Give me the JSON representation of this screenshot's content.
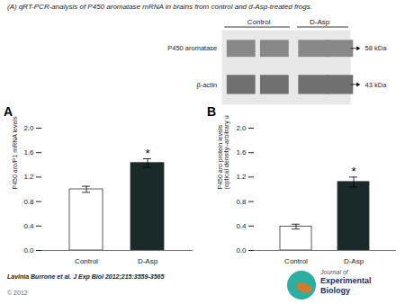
{
  "title": "(A) qRT-PCR-analysis of P450 aromatase mRNA in brains from control and d-Asp-treated frogs.",
  "annotations": {
    "blot_columns": [
      "Control",
      "D-Asp"
    ],
    "blot_rows": [
      {
        "label": "P450 aromatase",
        "size": "58 kDa"
      },
      {
        "label": "β-actin",
        "size": "43 kDa"
      }
    ],
    "footer": "Lavinia Burrone et al. J Exp Biol 2012;215:3559-3565",
    "copyright": "© 2012",
    "logo": [
      "Journal of",
      "Experimental",
      "Biology"
    ]
  },
  "chart_data": [
    {
      "type": "bar",
      "subtitle": "A",
      "categories": [
        "Control",
        "D-Asp"
      ],
      "values": [
        1.0,
        1.43
      ],
      "errors": [
        0.05,
        0.07
      ],
      "colors": [
        "white",
        "#1a2a2a"
      ],
      "ylabel": "P450 aro/P1 mRNA levels",
      "ylim": [
        0,
        2
      ],
      "yticks": [
        {
          "value": 0,
          "label": "0.0"
        },
        0.4,
        0.8,
        1.2,
        1.6,
        {
          "value": 2,
          "label": "2.0"
        }
      ],
      "annotations": [
        {
          "category": "D-Asp",
          "text": "*"
        }
      ]
    },
    {
      "type": "bar",
      "subtitle": "B",
      "categories": [
        "Control",
        "D-Asp"
      ],
      "values": [
        0.39,
        1.12
      ],
      "errors": [
        0.04,
        0.08
      ],
      "colors": [
        "white",
        "#1a2a2a"
      ],
      "ylabel": "P450 aro protein levels\n(optical density–arbitrary unit)",
      "ylim": [
        0,
        2
      ],
      "yticks": [
        {
          "value": 0,
          "label": "0.0"
        },
        0.4,
        0.8,
        1.2,
        1.6,
        {
          "value": 2,
          "label": "2.0"
        }
      ],
      "annotations": [
        {
          "category": "D-Asp",
          "text": "*"
        }
      ]
    }
  ]
}
